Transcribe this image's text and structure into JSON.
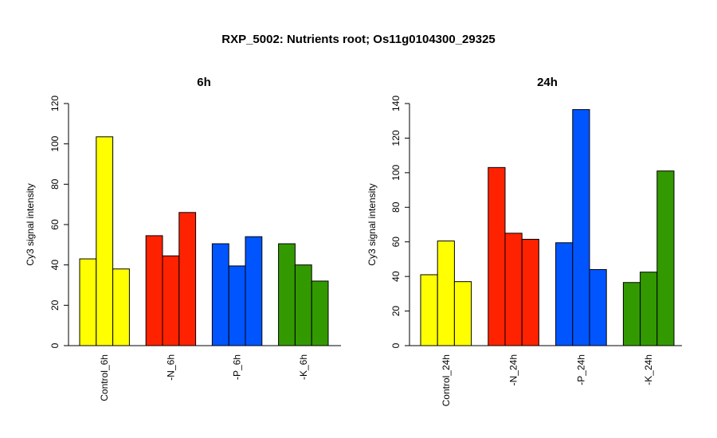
{
  "chart_data": {
    "title": "RXP_5002: Nutrients root; Os11g0104300_29325",
    "panels": [
      {
        "type": "bar",
        "title": "6h",
        "ylabel": "Cy3 signal intensity",
        "ylim": [
          0,
          120
        ],
        "yticks": [
          "0",
          "20",
          "40",
          "60",
          "80",
          "100",
          "120"
        ],
        "groups": [
          {
            "label": "Control_6h",
            "color": "#FFFF00",
            "values": [
              43,
              103.5,
              38
            ]
          },
          {
            "label": "-N_6h",
            "color": "#FF2200",
            "values": [
              54.5,
              44.5,
              66
            ]
          },
          {
            "label": "-P_6h",
            "color": "#0055FF",
            "values": [
              50.5,
              39.5,
              54
            ]
          },
          {
            "label": "-K_6h",
            "color": "#339900",
            "values": [
              50.5,
              40,
              32
            ]
          }
        ]
      },
      {
        "type": "bar",
        "title": "24h",
        "ylabel": "Cy3 signal intensity",
        "ylim": [
          0,
          140
        ],
        "yticks": [
          "0",
          "20",
          "40",
          "60",
          "80",
          "100",
          "120",
          "140"
        ],
        "groups": [
          {
            "label": "Control_24h",
            "color": "#FFFF00",
            "values": [
              41,
              60.5,
              37
            ]
          },
          {
            "label": "-N_24h",
            "color": "#FF2200",
            "values": [
              103,
              65,
              61.5
            ]
          },
          {
            "label": "-P_24h",
            "color": "#0055FF",
            "values": [
              59.5,
              136.5,
              44
            ]
          },
          {
            "label": "-K_24h",
            "color": "#339900",
            "values": [
              36.5,
              42.5,
              101
            ]
          }
        ]
      }
    ]
  }
}
